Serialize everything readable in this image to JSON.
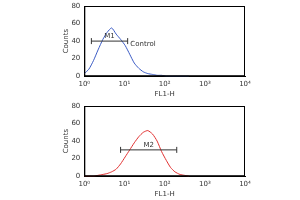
{
  "chart_data": [
    {
      "type": "line",
      "x_label": "FL1-H",
      "y_label": "Counts",
      "log": "x",
      "grid": false,
      "x": [
        1,
        1.3,
        1.7,
        2.2,
        2.9,
        3.7,
        4.8,
        6.2,
        8,
        10.4,
        13.5,
        17.5,
        22.7,
        29.4,
        38,
        50,
        65,
        84,
        110,
        140,
        180,
        240,
        310,
        400
      ],
      "series": [
        {
          "color": "#3b5bc4",
          "values": [
            3,
            8,
            18,
            30,
            42,
            50,
            55,
            48,
            42,
            35,
            25,
            15,
            9,
            5,
            3,
            2,
            1,
            1,
            0,
            0,
            0,
            0,
            0,
            0
          ]
        }
      ],
      "xlim": [
        1,
        10000
      ],
      "xticks": [
        {
          "value": 1,
          "label": "10⁰"
        },
        {
          "value": 10,
          "label": "10¹"
        },
        {
          "value": 100,
          "label": "10²"
        },
        {
          "value": 1000,
          "label": "10³"
        },
        {
          "value": 10000,
          "label": "10⁴"
        }
      ],
      "ylim": [
        0,
        80
      ],
      "yticks": [
        0,
        20,
        40,
        60,
        80
      ],
      "annotations": [
        {
          "text": "Control",
          "x": 14,
          "y": 36
        }
      ],
      "gates": [
        {
          "label": "M1",
          "range": [
            1.5,
            12
          ],
          "y": 40
        }
      ]
    },
    {
      "type": "line",
      "x_label": "FL1-H",
      "y_label": "Counts",
      "log": "x",
      "grid": false,
      "x": [
        1,
        1.3,
        1.7,
        2.2,
        2.9,
        3.7,
        4.8,
        6.2,
        8,
        10.4,
        13.5,
        17.5,
        22.7,
        29.4,
        38,
        50,
        65,
        84,
        110,
        140,
        180,
        240,
        310,
        400
      ],
      "series": [
        {
          "color": "#e03030",
          "values": [
            0,
            0,
            0,
            1,
            2,
            3,
            5,
            8,
            14,
            22,
            30,
            38,
            45,
            50,
            52,
            48,
            40,
            28,
            18,
            10,
            5,
            2,
            1,
            0
          ]
        }
      ],
      "xlim": [
        1,
        10000
      ],
      "xticks": [
        {
          "value": 1,
          "label": "10⁰"
        },
        {
          "value": 10,
          "label": "10¹"
        },
        {
          "value": 100,
          "label": "10²"
        },
        {
          "value": 1000,
          "label": "10³"
        },
        {
          "value": 10000,
          "label": "10⁴"
        }
      ],
      "ylim": [
        0,
        80
      ],
      "yticks": [
        0,
        20,
        40,
        60,
        80
      ],
      "annotations": [],
      "gates": [
        {
          "label": "M2",
          "range": [
            8,
            200
          ],
          "y": 30
        }
      ]
    }
  ]
}
